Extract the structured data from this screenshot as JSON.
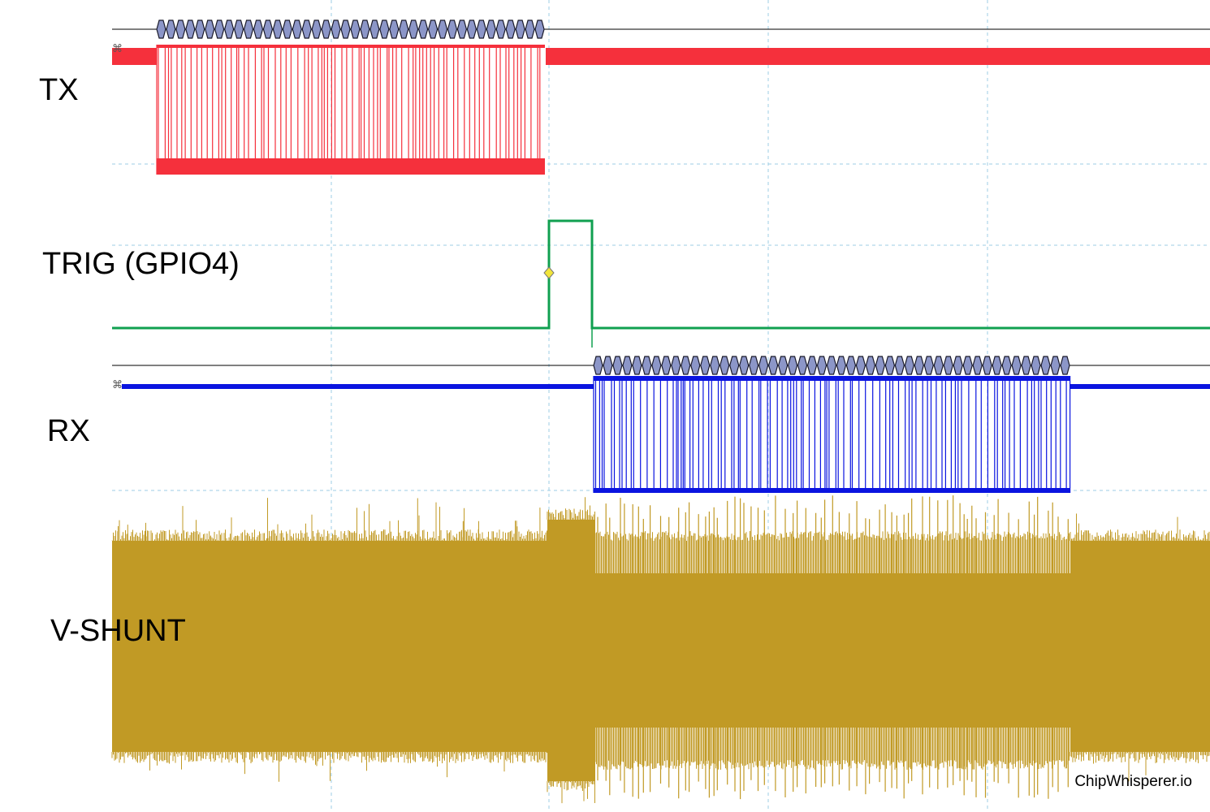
{
  "channels": [
    {
      "id": "tx",
      "label": "TX",
      "color": "#f5303c"
    },
    {
      "id": "trig",
      "label": "TRIG (GPIO4)",
      "color": "#10a050"
    },
    {
      "id": "rx",
      "label": "RX",
      "color": "#0a14e0"
    },
    {
      "id": "vshunt",
      "label": "V-SHUNT",
      "color": "#c19a25"
    }
  ],
  "decode_color": "#8c96c8",
  "grid_color": "#9ccde6",
  "trigger_marker_color": "#f2e53a",
  "watermark": "ChipWhisperer.io"
}
